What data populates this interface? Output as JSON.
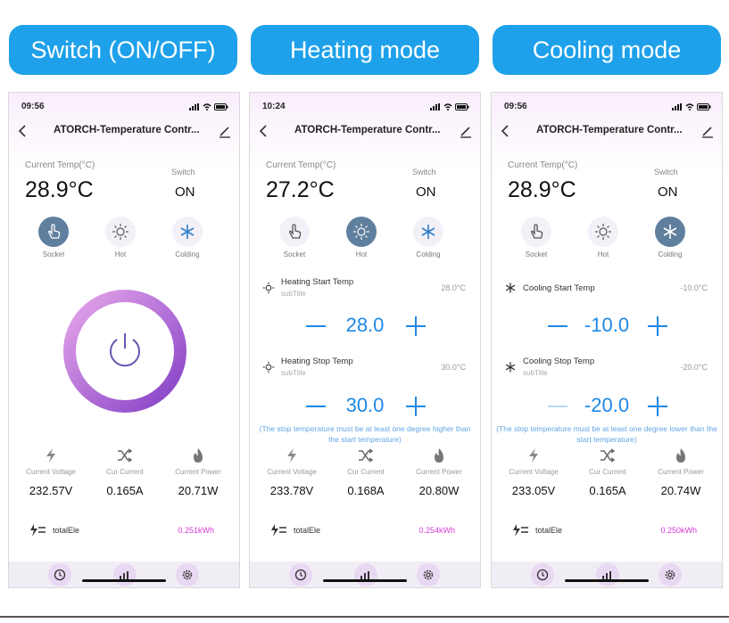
{
  "headers": [
    "Switch (ON/OFF)",
    "Heating mode",
    "Cooling mode"
  ],
  "app_title": "ATORCH-Temperature Contr...",
  "labels": {
    "current_temp": "Current Temp(°C)",
    "switch": "Switch",
    "modes": [
      "Socket",
      "Hot",
      "Colding"
    ],
    "metrics": [
      "Current Voltage",
      "Cur Current",
      "Current Power"
    ],
    "total": "totalEle",
    "subtitle": "subTitle",
    "warning": "(The stop temperature must be at least one degree higher than the start temperature)",
    "warning_cooling": "(The stop temperature must be at least one degree lower than the start temperature)"
  },
  "screens": [
    {
      "time": "09:56",
      "temp": "28.9°C",
      "switch_state": "ON",
      "active_mode": "Socket",
      "metrics": [
        "232.57V",
        "0.165A",
        "20.71W"
      ],
      "total": "0.251kWh"
    },
    {
      "time": "10:24",
      "temp": "27.2°C",
      "switch_state": "ON",
      "active_mode": "Hot",
      "start_label": "Heating Start Temp",
      "start_current": "28.0°C",
      "start_value": "28.0",
      "stop_label": "Heating Stop Temp",
      "stop_current": "30.0°C",
      "stop_value": "30.0",
      "metrics": [
        "233.78V",
        "0.168A",
        "20.80W"
      ],
      "total": "0.254kWh"
    },
    {
      "time": "09:56",
      "temp": "28.9°C",
      "switch_state": "ON",
      "active_mode": "Colding",
      "start_label": "Cooling Start Temp",
      "start_current": "-10.0°C",
      "start_value": "-10.0",
      "stop_label": "Cooling Stop Temp",
      "stop_current": "-20.0°C",
      "stop_value": "-20.0",
      "metrics": [
        "233.05V",
        "0.165A",
        "20.74W"
      ],
      "total": "0.250kWh"
    }
  ],
  "colors": {
    "header": "#1ea1ea",
    "accent_blue": "#1e88e5",
    "ring_start": "#e3a0e8",
    "ring_end": "#8a44c8",
    "total_value": "#d63bd6"
  },
  "icons": {
    "modes": [
      "hand-icon",
      "sun-icon",
      "snowflake-icon"
    ],
    "metrics": [
      "lightning-icon",
      "shuffle-icon",
      "flame-icon"
    ],
    "tabs": [
      "clock-icon",
      "chart-icon",
      "gear-icon"
    ]
  }
}
